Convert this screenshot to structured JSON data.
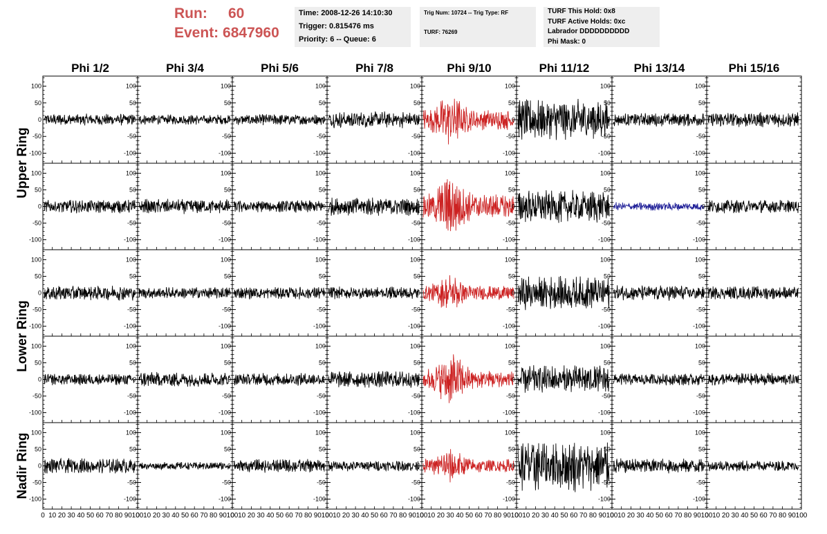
{
  "header": {
    "run_label": "Run:",
    "run_value": "60",
    "event_label": "Event:",
    "event_value": "6847960",
    "info1": [
      "Time: 2008-12-26 14:10:30",
      "Trigger: 0.815476 ms",
      "Priority: 6 -- Queue: 6"
    ],
    "info2": [
      "Trig Num: 10724 -- Trig Type: RF",
      "TURF: 76269"
    ],
    "info3": [
      "TURF This Hold: 0x8",
      "TURF Active Holds: 0xc",
      "Labrador DDDDDDDDDD",
      "Phi Mask: 0"
    ]
  },
  "colors": {
    "trace_default": "#000000",
    "trace_triggered": "#cc2222",
    "trace_highlight": "#222299",
    "header_accent": "#cc5555",
    "info_bg": "#eeeeee"
  },
  "chart_data": {
    "type": "line",
    "columns": [
      "Phi 1/2",
      "Phi 3/4",
      "Phi 5/6",
      "Phi 7/8",
      "Phi 9/10",
      "Phi 11/12",
      "Phi 13/14",
      "Phi 15/16"
    ],
    "row_groups": [
      {
        "label": "Upper Ring",
        "rows": [
          0,
          1
        ]
      },
      {
        "label": "Lower Ring",
        "rows": [
          2,
          3
        ]
      },
      {
        "label": "Nadir Ring",
        "rows": [
          4
        ]
      }
    ],
    "ylim": [
      -130,
      130
    ],
    "xlim": [
      0,
      100
    ],
    "y_ticks": [
      "100",
      "50",
      "0",
      "-50",
      "-100"
    ],
    "y_tick_values": [
      100,
      50,
      0,
      -50,
      -100
    ],
    "x_ticks": [
      "0",
      "10",
      "20",
      "30",
      "40",
      "50",
      "60",
      "70",
      "80",
      "90",
      "100"
    ],
    "x_tick_values": [
      0,
      10,
      20,
      30,
      40,
      50,
      60,
      70,
      80,
      90,
      100
    ],
    "points_per_trace": 256,
    "traces": [
      [
        {
          "amp": 14,
          "color": "trace_default"
        },
        {
          "amp": 12,
          "color": "trace_default"
        },
        {
          "amp": 13,
          "color": "trace_default"
        },
        {
          "amp": 20,
          "color": "trace_default"
        },
        {
          "amp": 45,
          "color": "trace_triggered",
          "pulse": 0.3
        },
        {
          "amp": 48,
          "color": "trace_default"
        },
        {
          "amp": 16,
          "color": "trace_default"
        },
        {
          "amp": 18,
          "color": "trace_default"
        }
      ],
      [
        {
          "amp": 16,
          "color": "trace_default"
        },
        {
          "amp": 18,
          "color": "trace_default"
        },
        {
          "amp": 15,
          "color": "trace_default"
        },
        {
          "amp": 22,
          "color": "trace_default"
        },
        {
          "amp": 55,
          "color": "trace_triggered",
          "pulse": 0.3
        },
        {
          "amp": 40,
          "color": "trace_default"
        },
        {
          "amp": 10,
          "color": "trace_highlight"
        },
        {
          "amp": 16,
          "color": "trace_default"
        }
      ],
      [
        {
          "amp": 18,
          "color": "trace_default"
        },
        {
          "amp": 14,
          "color": "trace_default"
        },
        {
          "amp": 15,
          "color": "trace_default"
        },
        {
          "amp": 15,
          "color": "trace_default"
        },
        {
          "amp": 32,
          "color": "trace_triggered",
          "pulse": 0.3
        },
        {
          "amp": 40,
          "color": "trace_default"
        },
        {
          "amp": 18,
          "color": "trace_default"
        },
        {
          "amp": 16,
          "color": "trace_default"
        }
      ],
      [
        {
          "amp": 14,
          "color": "trace_default"
        },
        {
          "amp": 18,
          "color": "trace_default"
        },
        {
          "amp": 15,
          "color": "trace_default"
        },
        {
          "amp": 20,
          "color": "trace_default"
        },
        {
          "amp": 45,
          "color": "trace_triggered",
          "pulse": 0.3
        },
        {
          "amp": 34,
          "color": "trace_default"
        },
        {
          "amp": 14,
          "color": "trace_default"
        },
        {
          "amp": 15,
          "color": "trace_default"
        }
      ],
      [
        {
          "amp": 18,
          "color": "trace_default"
        },
        {
          "amp": 9,
          "color": "trace_default"
        },
        {
          "amp": 16,
          "color": "trace_default"
        },
        {
          "amp": 13,
          "color": "trace_default"
        },
        {
          "amp": 30,
          "color": "trace_triggered",
          "pulse": 0.3
        },
        {
          "amp": 62,
          "color": "trace_default"
        },
        {
          "amp": 18,
          "color": "trace_default"
        },
        {
          "amp": 13,
          "color": "trace_default"
        }
      ]
    ]
  }
}
